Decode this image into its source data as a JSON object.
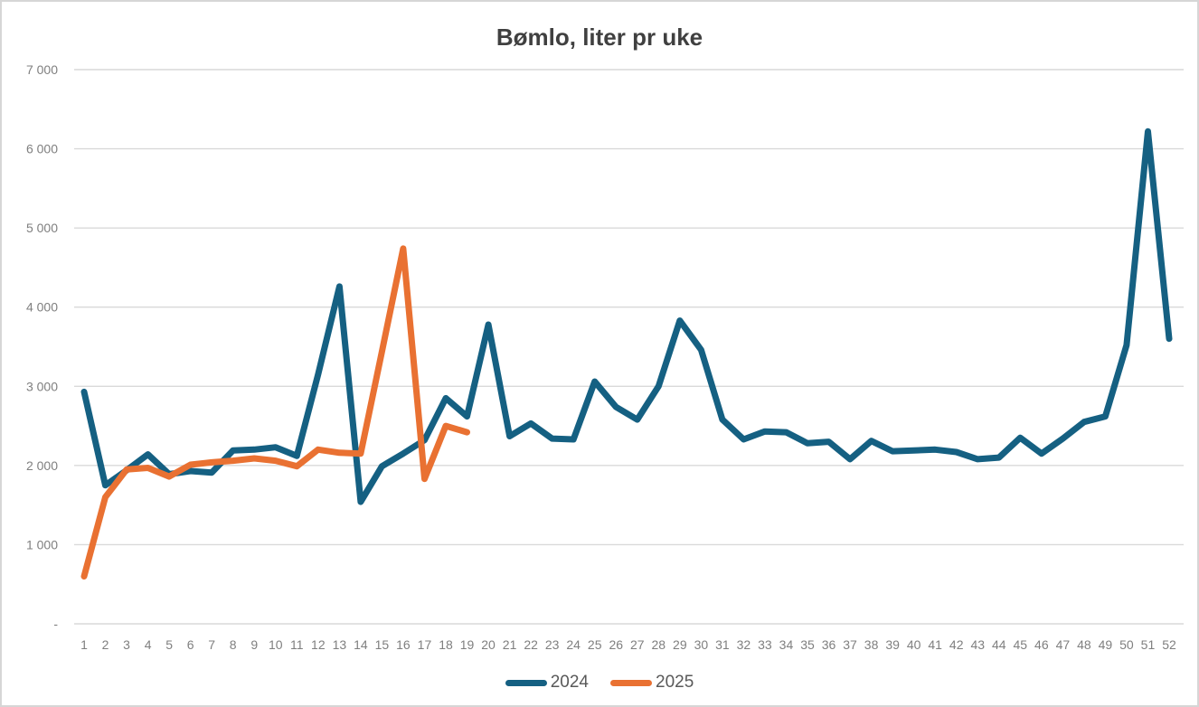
{
  "canvas": {
    "background": "#ffffff",
    "border_color": "#d6d6d6"
  },
  "chart_data": {
    "type": "line",
    "title": "Bømlo, liter pr uke",
    "xlabel": "",
    "ylabel": "",
    "x": [
      1,
      2,
      3,
      4,
      5,
      6,
      7,
      8,
      9,
      10,
      11,
      12,
      13,
      14,
      15,
      16,
      17,
      18,
      19,
      20,
      21,
      22,
      23,
      24,
      25,
      26,
      27,
      28,
      29,
      30,
      31,
      32,
      33,
      34,
      35,
      36,
      37,
      38,
      39,
      40,
      41,
      42,
      43,
      44,
      45,
      46,
      47,
      48,
      49,
      50,
      51,
      52
    ],
    "ylim": [
      0,
      7000
    ],
    "y_tick_interval": 1000,
    "y_tick_labels": [
      "-",
      "1 000",
      "2 000",
      "3 000",
      "4 000",
      "5 000",
      "6 000",
      "7 000"
    ],
    "grid": "horizontal",
    "gridline_color": "#d9d9d9",
    "axis_label_color": "#7f7f7f",
    "title_color": "#404040",
    "legend_position": "bottom",
    "legend_text_color": "#595959",
    "series": [
      {
        "name": "2024",
        "color": "#156082",
        "values": [
          2930,
          1750,
          1940,
          2140,
          1890,
          1930,
          1910,
          2190,
          2200,
          2230,
          2120,
          3150,
          4260,
          1540,
          1990,
          2150,
          2320,
          2850,
          2620,
          3780,
          2370,
          2530,
          2340,
          2330,
          3060,
          2740,
          2580,
          3000,
          3830,
          3460,
          2580,
          2330,
          2430,
          2420,
          2280,
          2300,
          2080,
          2310,
          2180,
          2190,
          2200,
          2170,
          2080,
          2100,
          2350,
          2150,
          2340,
          2550,
          2620,
          3520,
          6220,
          3600
        ]
      },
      {
        "name": "2025",
        "color": "#e97132",
        "values": [
          600,
          1600,
          1950,
          1970,
          1860,
          2010,
          2040,
          2060,
          2090,
          2060,
          1990,
          2200,
          2160,
          2150,
          3440,
          4740,
          1830,
          2500,
          2420
        ]
      }
    ]
  }
}
